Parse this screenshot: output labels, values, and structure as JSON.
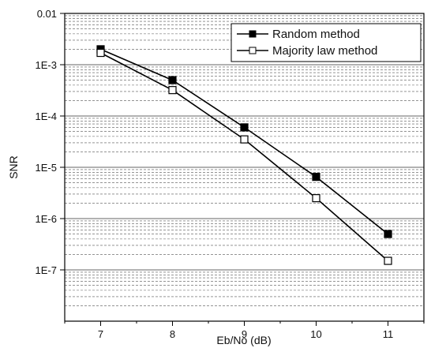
{
  "chart_data": {
    "type": "line",
    "title": "",
    "xlabel": "Eb/No (dB)",
    "ylabel": "SNR",
    "x_scale": "linear",
    "y_scale": "log",
    "xlim": [
      6.5,
      11.5
    ],
    "ylim": [
      1e-08,
      0.01
    ],
    "x_ticks": [
      7,
      8,
      9,
      10,
      11
    ],
    "x_tick_labels": [
      "7",
      "8",
      "9",
      "10",
      "11"
    ],
    "y_ticks": [
      0.01,
      0.001,
      0.0001,
      1e-05,
      1e-06,
      1e-07
    ],
    "y_tick_labels": [
      "0.01",
      "1E-3",
      "1E-4",
      "1E-5",
      "1E-6",
      "1E-7"
    ],
    "grid": "major and minor (dashed)",
    "legend_position": "top-right",
    "x": [
      7,
      8,
      9,
      10,
      11
    ],
    "series": [
      {
        "name": "Random method",
        "marker": "filled-square",
        "color": "#000000",
        "values": [
          0.002,
          0.0005,
          6e-05,
          6.5e-06,
          5e-07
        ]
      },
      {
        "name": "Majority law method",
        "marker": "open-square",
        "color": "#000000",
        "values": [
          0.0017,
          0.00032,
          3.5e-05,
          2.5e-06,
          1.5e-07
        ]
      }
    ]
  }
}
